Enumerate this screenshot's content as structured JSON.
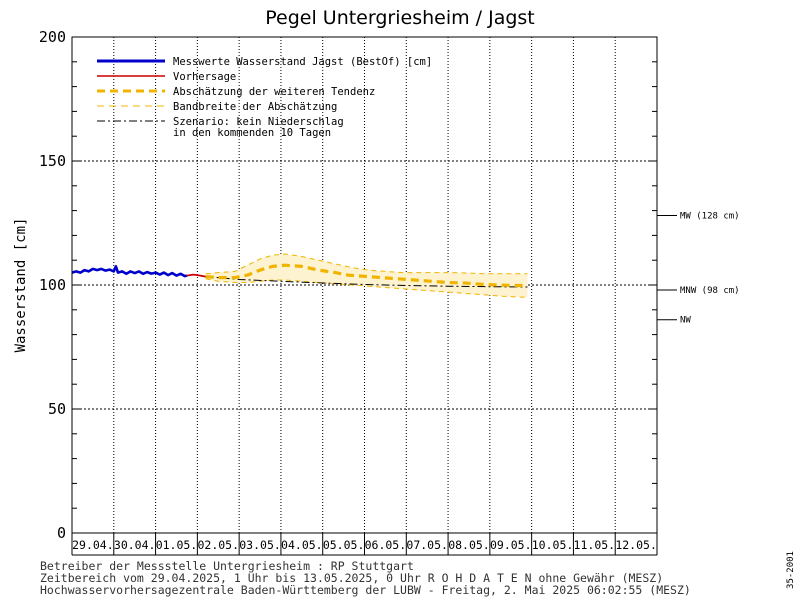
{
  "chart_data": {
    "type": "line",
    "title": "Pegel Untergriesheim / Jagst",
    "ylabel": "Wasserstand [cm]",
    "xlabel": "",
    "ylim": [
      0,
      200
    ],
    "yticks": [
      0,
      50,
      100,
      150,
      200
    ],
    "x_start": "29.04.",
    "x_categories": [
      "29.04.",
      "30.04.",
      "01.05.",
      "02.05.",
      "03.05.",
      "04.05.",
      "05.05.",
      "06.05.",
      "07.05.",
      "08.05.",
      "09.05.",
      "10.05.",
      "11.05.",
      "12.05."
    ],
    "grid": true,
    "legend_position": "top-left",
    "series": [
      {
        "name": "Messwerte Wasserstand Jagst  (BestOf)  [cm]",
        "color": "#0000cc",
        "style": "solid-thick",
        "points": [
          [
            0.0,
            105
          ],
          [
            0.1,
            105.5
          ],
          [
            0.2,
            105
          ],
          [
            0.3,
            106
          ],
          [
            0.4,
            105.5
          ],
          [
            0.5,
            106.5
          ],
          [
            0.6,
            106
          ],
          [
            0.7,
            106.5
          ],
          [
            0.8,
            105.8
          ],
          [
            0.9,
            106.2
          ],
          [
            1.0,
            105.5
          ],
          [
            1.05,
            107.5
          ],
          [
            1.1,
            105
          ],
          [
            1.2,
            105.5
          ],
          [
            1.3,
            104.5
          ],
          [
            1.4,
            105.5
          ],
          [
            1.5,
            104.8
          ],
          [
            1.6,
            105.5
          ],
          [
            1.7,
            104.5
          ],
          [
            1.8,
            105.2
          ],
          [
            1.9,
            104.6
          ],
          [
            2.0,
            105
          ],
          [
            2.1,
            104.2
          ],
          [
            2.2,
            105
          ],
          [
            2.3,
            104
          ],
          [
            2.4,
            104.8
          ],
          [
            2.5,
            103.8
          ],
          [
            2.6,
            104.5
          ],
          [
            2.7,
            103.6
          ],
          [
            2.75,
            103.8
          ]
        ]
      },
      {
        "name": "Vorhersage",
        "color": "#cc0000",
        "style": "solid",
        "points": [
          [
            2.75,
            103.8
          ],
          [
            2.9,
            104.2
          ],
          [
            3.0,
            104
          ],
          [
            3.2,
            103.4
          ]
        ]
      },
      {
        "name": "Abschätzung der weiteren Tendenz",
        "color": "#f0b400",
        "style": "dashed-thick",
        "points": [
          [
            3.2,
            103.4
          ],
          [
            3.5,
            103
          ],
          [
            3.9,
            103
          ],
          [
            4.2,
            104
          ],
          [
            4.5,
            106
          ],
          [
            4.8,
            107.5
          ],
          [
            5.1,
            108
          ],
          [
            5.5,
            107.5
          ],
          [
            5.9,
            106
          ],
          [
            6.3,
            105
          ],
          [
            6.6,
            104
          ],
          [
            7.0,
            103.5
          ],
          [
            7.4,
            103
          ],
          [
            7.8,
            102.5
          ],
          [
            8.2,
            102
          ],
          [
            8.6,
            101.5
          ],
          [
            9.0,
            101
          ],
          [
            9.4,
            100.8
          ],
          [
            9.8,
            100.3
          ],
          [
            10.2,
            100
          ],
          [
            10.6,
            99.8
          ],
          [
            10.9,
            99.8
          ]
        ]
      },
      {
        "name": "Bandbreite der Abschätzung",
        "color": "#f0b400",
        "style": "dashed-thin",
        "upper": [
          [
            3.2,
            104.5
          ],
          [
            3.5,
            105
          ],
          [
            3.9,
            105.5
          ],
          [
            4.2,
            108
          ],
          [
            4.5,
            110.5
          ],
          [
            4.8,
            112
          ],
          [
            5.1,
            112.5
          ],
          [
            5.5,
            111.5
          ],
          [
            5.9,
            110
          ],
          [
            6.3,
            108.5
          ],
          [
            6.7,
            107
          ],
          [
            7.1,
            106
          ],
          [
            7.5,
            105.5
          ],
          [
            7.9,
            105
          ],
          [
            8.3,
            105
          ],
          [
            8.7,
            105
          ],
          [
            9.1,
            105
          ],
          [
            9.5,
            104.8
          ],
          [
            9.9,
            104.5
          ],
          [
            10.3,
            104.5
          ],
          [
            10.9,
            104.5
          ]
        ],
        "lower": [
          [
            3.2,
            102.5
          ],
          [
            3.5,
            101.5
          ],
          [
            3.9,
            101
          ],
          [
            4.2,
            101
          ],
          [
            4.5,
            101.5
          ],
          [
            4.8,
            102
          ],
          [
            5.1,
            102
          ],
          [
            5.5,
            101.5
          ],
          [
            5.9,
            101
          ],
          [
            6.3,
            100.5
          ],
          [
            6.7,
            100
          ],
          [
            7.1,
            99.5
          ],
          [
            7.5,
            99
          ],
          [
            7.9,
            98.5
          ],
          [
            8.3,
            98
          ],
          [
            8.7,
            97.5
          ],
          [
            9.1,
            97
          ],
          [
            9.5,
            96.5
          ],
          [
            9.9,
            96
          ],
          [
            10.3,
            95.5
          ],
          [
            10.9,
            95
          ]
        ]
      },
      {
        "name": "Szenario: kein Niederschlag\nin den kommenden 10 Tagen",
        "color": "#000000",
        "style": "dash-dot",
        "points": [
          [
            3.2,
            103.4
          ],
          [
            4.0,
            102.2
          ],
          [
            5.0,
            101.5
          ],
          [
            6.0,
            100.8
          ],
          [
            7.0,
            100.2
          ],
          [
            8.0,
            99.8
          ],
          [
            9.0,
            99.5
          ],
          [
            10.0,
            99.3
          ],
          [
            10.9,
            99.2
          ]
        ]
      }
    ],
    "reference_lines": [
      {
        "label": "MW (128 cm)",
        "value": 128
      },
      {
        "label": "MNW (98 cm)",
        "value": 98
      },
      {
        "label": "NW",
        "value": 86
      }
    ]
  },
  "legend": {
    "items": [
      {
        "label": "Messwerte Wasserstand Jagst  (BestOf)  [cm]"
      },
      {
        "label": "Vorhersage"
      },
      {
        "label": "Abschätzung der weiteren Tendenz"
      },
      {
        "label": "Bandbreite der Abschätzung"
      },
      {
        "label": "Szenario: kein Niederschlag"
      },
      {
        "label": "in den kommenden 10 Tagen"
      }
    ]
  },
  "footer": {
    "line1": "Betreiber der Messstelle Untergriesheim : RP Stuttgart",
    "line2": "Zeitbereich vom 29.04.2025, 1 Uhr bis 13.05.2025, 0 Uhr   R O H D A T E N ohne Gewähr (MESZ)",
    "line3": "Hochwasservorhersagezentrale Baden-Württemberg der LUBW - Freitag, 2. Mai 2025 06:02:55 (MESZ)"
  },
  "side_code": "35-2001",
  "colors": {
    "measured": "#0000cc",
    "forecast": "#cc0000",
    "tendency": "#f0b400",
    "band_fill": "#fdf3d0"
  }
}
